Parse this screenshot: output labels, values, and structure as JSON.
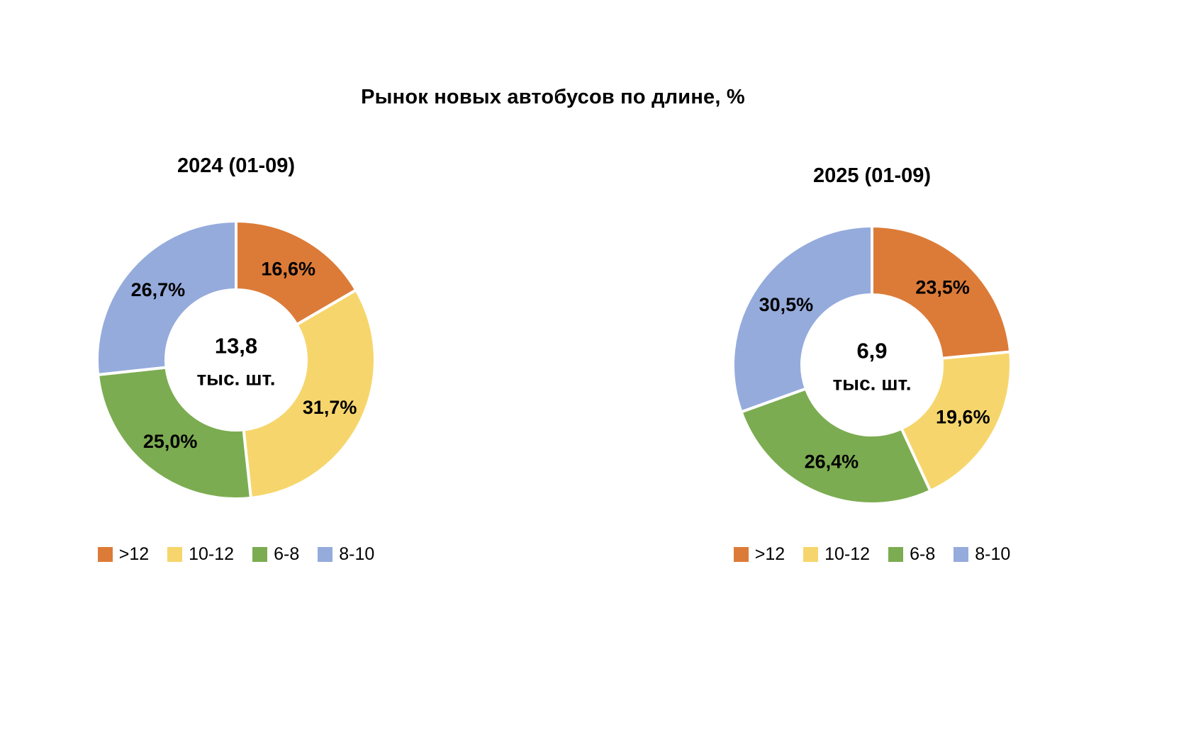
{
  "title": "Рынок новых автобусов по длине, %",
  "chart_data": [
    {
      "type": "pie",
      "subtype": "donut",
      "title": "2024 (01-09)",
      "center_value": "13,8",
      "center_unit": "тыс. шт.",
      "categories": [
        ">12",
        "10-12",
        "6-8",
        "8-10"
      ],
      "values": [
        16.6,
        31.7,
        25.0,
        26.7
      ],
      "value_labels": [
        "16,6%",
        "31,7%",
        "25,0%",
        "26,7%"
      ],
      "colors": [
        "#dc7b38",
        "#f6d66c",
        "#7cac51",
        "#95abdc"
      ],
      "start_angle_deg": 0,
      "direction": "clockwise",
      "legend_position": "bottom"
    },
    {
      "type": "pie",
      "subtype": "donut",
      "title": "2025 (01-09)",
      "center_value": "6,9",
      "center_unit": "тыс. шт.",
      "categories": [
        ">12",
        "10-12",
        "6-8",
        "8-10"
      ],
      "values": [
        23.5,
        19.6,
        26.4,
        30.5
      ],
      "value_labels": [
        "23,5%",
        "19,6%",
        "26,4%",
        "30,5%"
      ],
      "colors": [
        "#dc7b38",
        "#f6d66c",
        "#7cac51",
        "#95abdc"
      ],
      "start_angle_deg": 0,
      "direction": "clockwise",
      "legend_position": "bottom"
    }
  ]
}
